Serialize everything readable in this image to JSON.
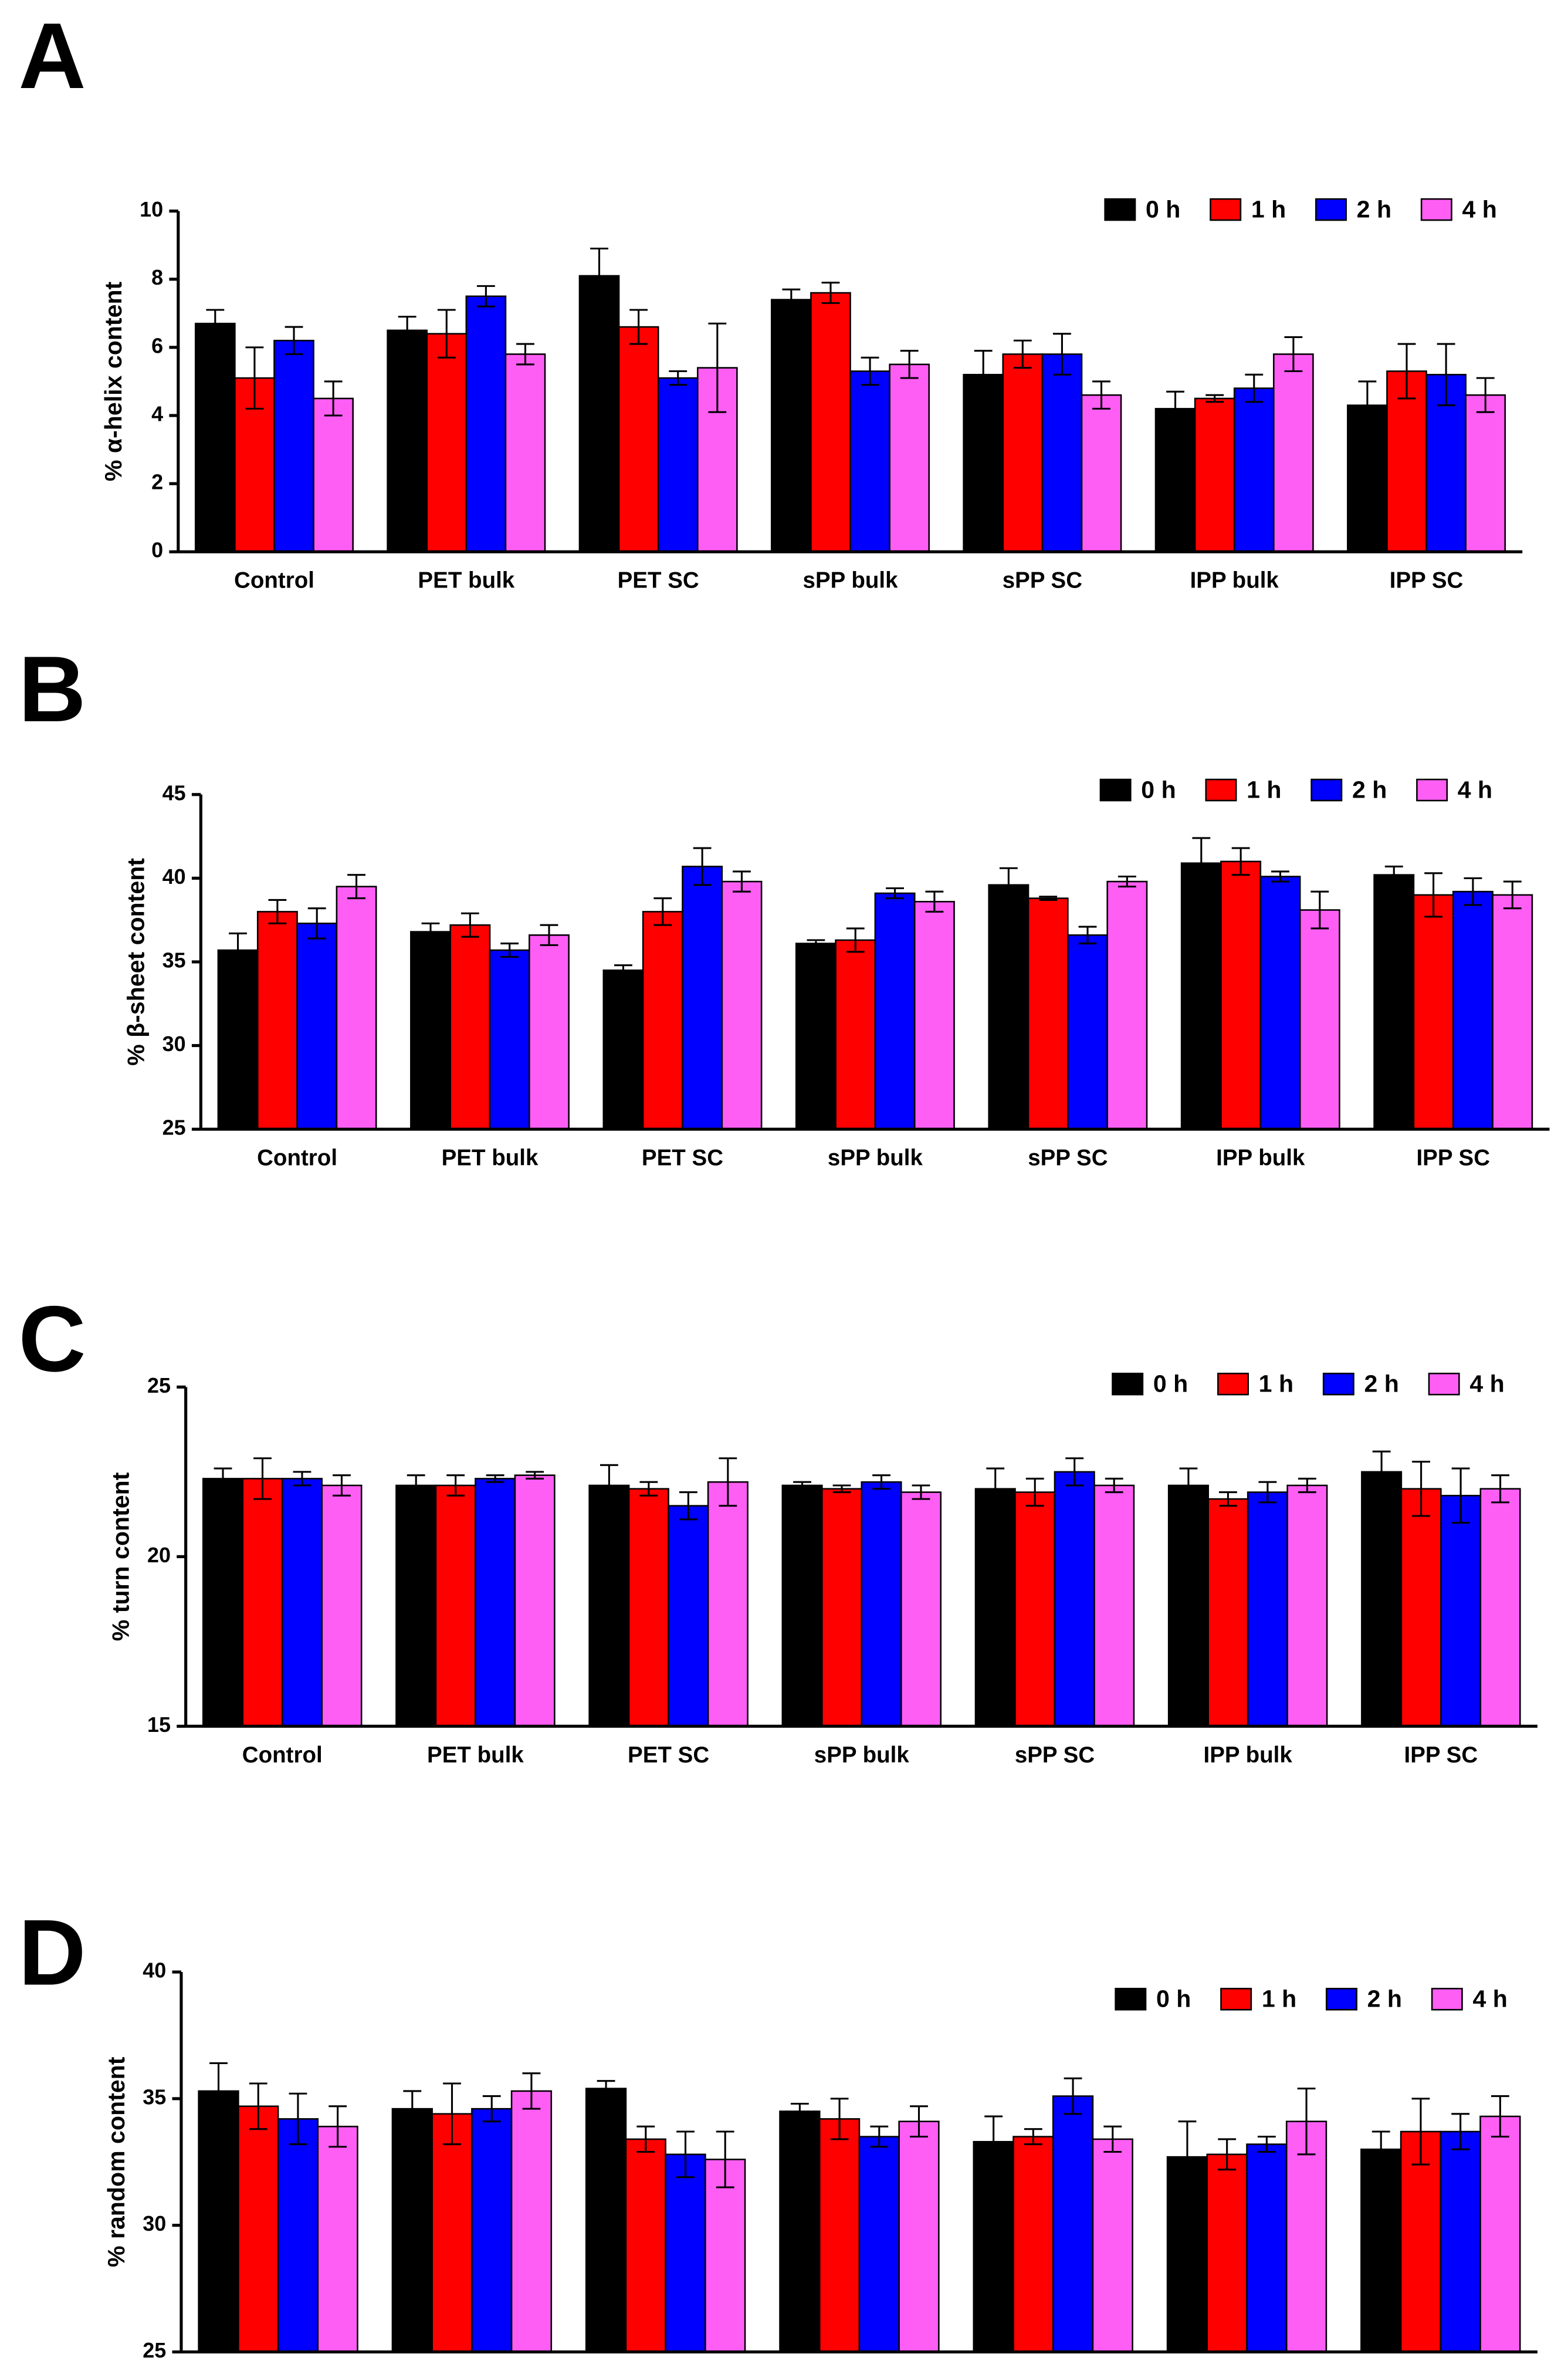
{
  "chart_data": [
    {
      "type": "bar",
      "panel_label": "A",
      "y_label": "% α-helix content",
      "categories": [
        "Control",
        "PET bulk",
        "PET SC",
        "sPP bulk",
        "sPP SC",
        "IPP bulk",
        "IPP SC"
      ],
      "ylim": [
        0,
        10
      ],
      "yticks": [
        0,
        2,
        4,
        6,
        8,
        10
      ],
      "series": [
        {
          "name": "0 h",
          "color": "#000000",
          "values": [
            6.7,
            6.5,
            8.1,
            7.4,
            5.2,
            4.2,
            4.3
          ],
          "errors": [
            0.4,
            0.4,
            0.8,
            0.3,
            0.7,
            0.5,
            0.7
          ]
        },
        {
          "name": "1 h",
          "color": "#ff0000",
          "values": [
            5.1,
            6.4,
            6.6,
            7.6,
            5.8,
            4.5,
            5.3
          ],
          "errors": [
            0.9,
            0.7,
            0.5,
            0.3,
            0.4,
            0.1,
            0.8
          ]
        },
        {
          "name": "2 h",
          "color": "#0000ff",
          "values": [
            6.2,
            7.5,
            5.1,
            5.3,
            5.8,
            4.8,
            5.2
          ],
          "errors": [
            0.4,
            0.3,
            0.2,
            0.4,
            0.6,
            0.4,
            0.9
          ]
        },
        {
          "name": "4 h",
          "color": "#ff5ef5",
          "values": [
            4.5,
            5.8,
            5.4,
            5.5,
            4.6,
            5.8,
            4.6
          ],
          "errors": [
            0.5,
            0.3,
            1.3,
            0.4,
            0.4,
            0.5,
            0.5
          ]
        }
      ]
    },
    {
      "type": "bar",
      "panel_label": "B",
      "y_label": "% β-sheet content",
      "categories": [
        "Control",
        "PET bulk",
        "PET SC",
        "sPP bulk",
        "sPP SC",
        "IPP bulk",
        "IPP SC"
      ],
      "ylim": [
        25,
        45
      ],
      "yticks": [
        25,
        30,
        35,
        40,
        45
      ],
      "series": [
        {
          "name": "0 h",
          "color": "#000000",
          "values": [
            35.7,
            36.8,
            34.5,
            36.1,
            39.6,
            40.9,
            40.2
          ],
          "errors": [
            1.0,
            0.5,
            0.3,
            0.2,
            1.0,
            1.5,
            0.5
          ]
        },
        {
          "name": "1 h",
          "color": "#ff0000",
          "values": [
            38.0,
            37.2,
            38.0,
            36.3,
            38.8,
            41.0,
            39.0
          ],
          "errors": [
            0.7,
            0.7,
            0.8,
            0.7,
            0.1,
            0.8,
            1.3
          ]
        },
        {
          "name": "2 h",
          "color": "#0000ff",
          "values": [
            37.3,
            35.7,
            40.7,
            39.1,
            36.6,
            40.1,
            39.2
          ],
          "errors": [
            0.9,
            0.4,
            1.1,
            0.3,
            0.5,
            0.3,
            0.8
          ]
        },
        {
          "name": "4 h",
          "color": "#ff5ef5",
          "values": [
            39.5,
            36.6,
            39.8,
            38.6,
            39.8,
            38.1,
            39.0
          ],
          "errors": [
            0.7,
            0.6,
            0.6,
            0.6,
            0.3,
            1.1,
            0.8
          ]
        }
      ]
    },
    {
      "type": "bar",
      "panel_label": "C",
      "y_label": "% turn content",
      "categories": [
        "Control",
        "PET bulk",
        "PET SC",
        "sPP bulk",
        "sPP SC",
        "IPP bulk",
        "IPP SC"
      ],
      "ylim": [
        15,
        25
      ],
      "yticks": [
        15,
        20,
        25
      ],
      "series": [
        {
          "name": "0 h",
          "color": "#000000",
          "values": [
            22.3,
            22.1,
            22.1,
            22.1,
            22.0,
            22.1,
            22.5
          ],
          "errors": [
            0.3,
            0.3,
            0.6,
            0.1,
            0.6,
            0.5,
            0.6
          ]
        },
        {
          "name": "1 h",
          "color": "#ff0000",
          "values": [
            22.3,
            22.1,
            22.0,
            22.0,
            21.9,
            21.7,
            22.0
          ],
          "errors": [
            0.6,
            0.3,
            0.2,
            0.1,
            0.4,
            0.2,
            0.8
          ]
        },
        {
          "name": "2 h",
          "color": "#0000ff",
          "values": [
            22.3,
            22.3,
            21.5,
            22.2,
            22.5,
            21.9,
            21.8
          ],
          "errors": [
            0.2,
            0.1,
            0.4,
            0.2,
            0.4,
            0.3,
            0.8
          ]
        },
        {
          "name": "4 h",
          "color": "#ff5ef5",
          "values": [
            22.1,
            22.4,
            22.2,
            21.9,
            22.1,
            22.1,
            22.0
          ],
          "errors": [
            0.3,
            0.1,
            0.7,
            0.2,
            0.2,
            0.2,
            0.4
          ]
        }
      ]
    },
    {
      "type": "bar",
      "panel_label": "D",
      "y_label": "% random content",
      "categories": [
        "Control",
        "PET bulk",
        "PET SC",
        "sPP bulk",
        "sPP SC",
        "IPP bulk",
        "IPP SC"
      ],
      "ylim": [
        25,
        40
      ],
      "yticks": [
        25,
        30,
        35,
        40
      ],
      "series": [
        {
          "name": "0 h",
          "color": "#000000",
          "values": [
            35.3,
            34.6,
            35.4,
            34.5,
            33.3,
            32.7,
            33.0
          ],
          "errors": [
            1.1,
            0.7,
            0.3,
            0.3,
            1.0,
            1.4,
            0.7
          ]
        },
        {
          "name": "1 h",
          "color": "#ff0000",
          "values": [
            34.7,
            34.4,
            33.4,
            34.2,
            33.5,
            32.8,
            33.7
          ],
          "errors": [
            0.9,
            1.2,
            0.5,
            0.8,
            0.3,
            0.6,
            1.3
          ]
        },
        {
          "name": "2 h",
          "color": "#0000ff",
          "values": [
            34.2,
            34.6,
            32.8,
            33.5,
            35.1,
            33.2,
            33.7
          ],
          "errors": [
            1.0,
            0.5,
            0.9,
            0.4,
            0.7,
            0.3,
            0.7
          ]
        },
        {
          "name": "4 h",
          "color": "#ff5ef5",
          "values": [
            33.9,
            35.3,
            32.6,
            34.1,
            33.4,
            34.1,
            34.3
          ],
          "errors": [
            0.8,
            0.7,
            1.1,
            0.6,
            0.5,
            1.3,
            0.8
          ]
        }
      ]
    }
  ]
}
